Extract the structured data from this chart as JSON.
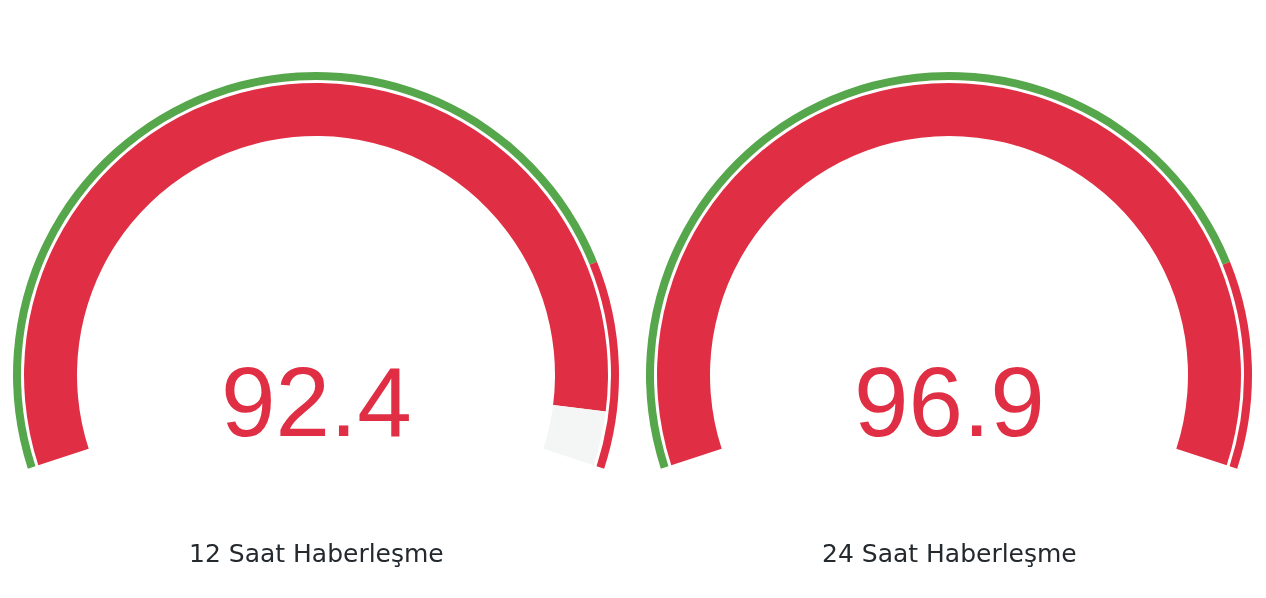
{
  "chart_data": [
    {
      "type": "donut",
      "title": "12 Saat Haberleşme",
      "annotations": [
        "92.4"
      ],
      "series": [
        {
          "values": [
            95,
            5
          ],
          "colors": [
            "#e02f44",
            "#f4f5f5"
          ]
        },
        {
          "values": [
            81.5,
            18.5
          ],
          "colors": [
            "#56a64b",
            "#e02f44"
          ]
        }
      ]
    },
    {
      "type": "donut",
      "title": "24 Saat Haberleşme",
      "annotations": [
        "96.9"
      ],
      "series": [
        {
          "values": [
            100
          ],
          "colors": [
            "#e02f44"
          ]
        },
        {
          "values": [
            81.5,
            18.5
          ],
          "colors": [
            "#56a64b",
            "#e02f44"
          ]
        }
      ]
    }
  ]
}
